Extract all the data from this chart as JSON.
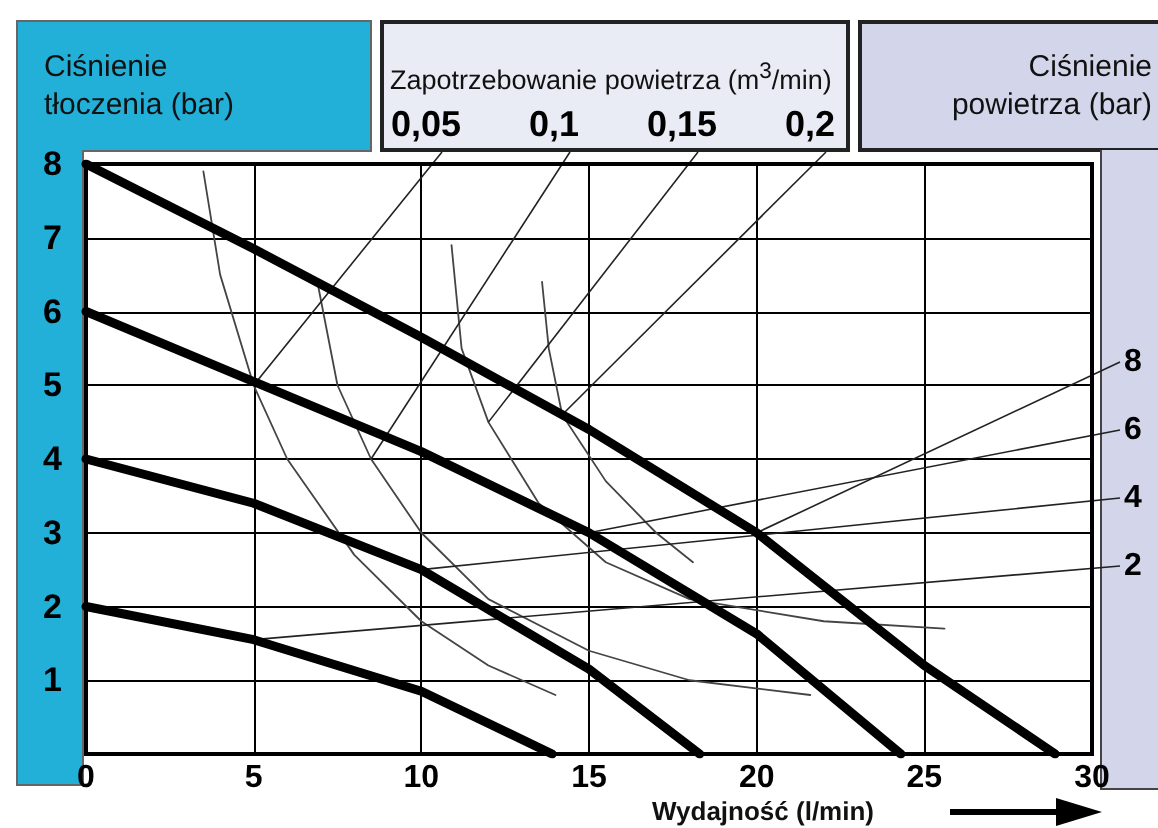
{
  "chart_data": {
    "type": "line",
    "ylabel": "Ciśnienie tłoczenia (bar)",
    "xlabel": "Wydajność (l/min)",
    "legend_title": "Zapotrzebowanie powietrza (m$^{3}$/min)",
    "annotations": [
      "Ciśnienie powietrza (bar)"
    ],
    "xlim": [
      0,
      30
    ],
    "xticks": [
      0,
      5,
      10,
      15,
      20,
      25,
      30
    ],
    "ylim": [
      0,
      8
    ],
    "yticks": [
      1,
      2,
      3,
      4,
      5,
      6,
      7,
      8
    ],
    "grid": true,
    "marker": "none",
    "line_style": "solid",
    "legend": false,
    "series": [
      {
        "name": "8",
        "color": "#000000",
        "x": [
          0,
          5,
          10,
          15,
          20,
          25,
          28.9
        ],
        "values": [
          8,
          6.85,
          5.65,
          4.4,
          3.0,
          1.2,
          0
        ]
      },
      {
        "name": "6",
        "color": "#000000",
        "x": [
          0,
          5,
          10,
          15,
          20,
          24.3
        ],
        "values": [
          6,
          5.05,
          4.1,
          3.0,
          1.63,
          0
        ]
      },
      {
        "name": "4",
        "color": "#000000",
        "x": [
          0,
          5,
          10,
          15,
          18.3
        ],
        "values": [
          4,
          3.4,
          2.5,
          1.15,
          0
        ]
      },
      {
        "name": "2",
        "color": "#000000",
        "x": [
          0,
          5,
          10,
          13.9
        ],
        "values": [
          2,
          1.55,
          0.85,
          0
        ]
      },
      {
        "name": "0,05",
        "color": "#444444",
        "x": [
          3.5,
          4,
          5,
          6,
          8,
          10,
          12,
          14
        ],
        "values": [
          7.9,
          6.5,
          5.0,
          4.0,
          2.7,
          1.8,
          1.2,
          0.8
        ]
      },
      {
        "name": "0,1",
        "color": "#444444",
        "x": [
          6.9,
          7.5,
          8.5,
          10,
          12,
          15,
          18,
          21.6
        ],
        "values": [
          6.4,
          5,
          4,
          3,
          2.1,
          1.4,
          1.0,
          0.8
        ]
      },
      {
        "name": "0,15",
        "color": "#444444",
        "x": [
          10.9,
          11.2,
          12,
          13.5,
          15.5,
          18,
          22,
          25.6
        ],
        "values": [
          6.9,
          5.5,
          4.5,
          3.4,
          2.6,
          2.1,
          1.8,
          1.7
        ]
      },
      {
        "name": "0,2",
        "color": "#444444",
        "x": [
          13.6,
          13.8,
          14.2,
          15.5,
          17,
          18.1
        ],
        "values": [
          6.4,
          5.5,
          4.6,
          3.7,
          3.0,
          2.6
        ]
      }
    ]
  }
}
